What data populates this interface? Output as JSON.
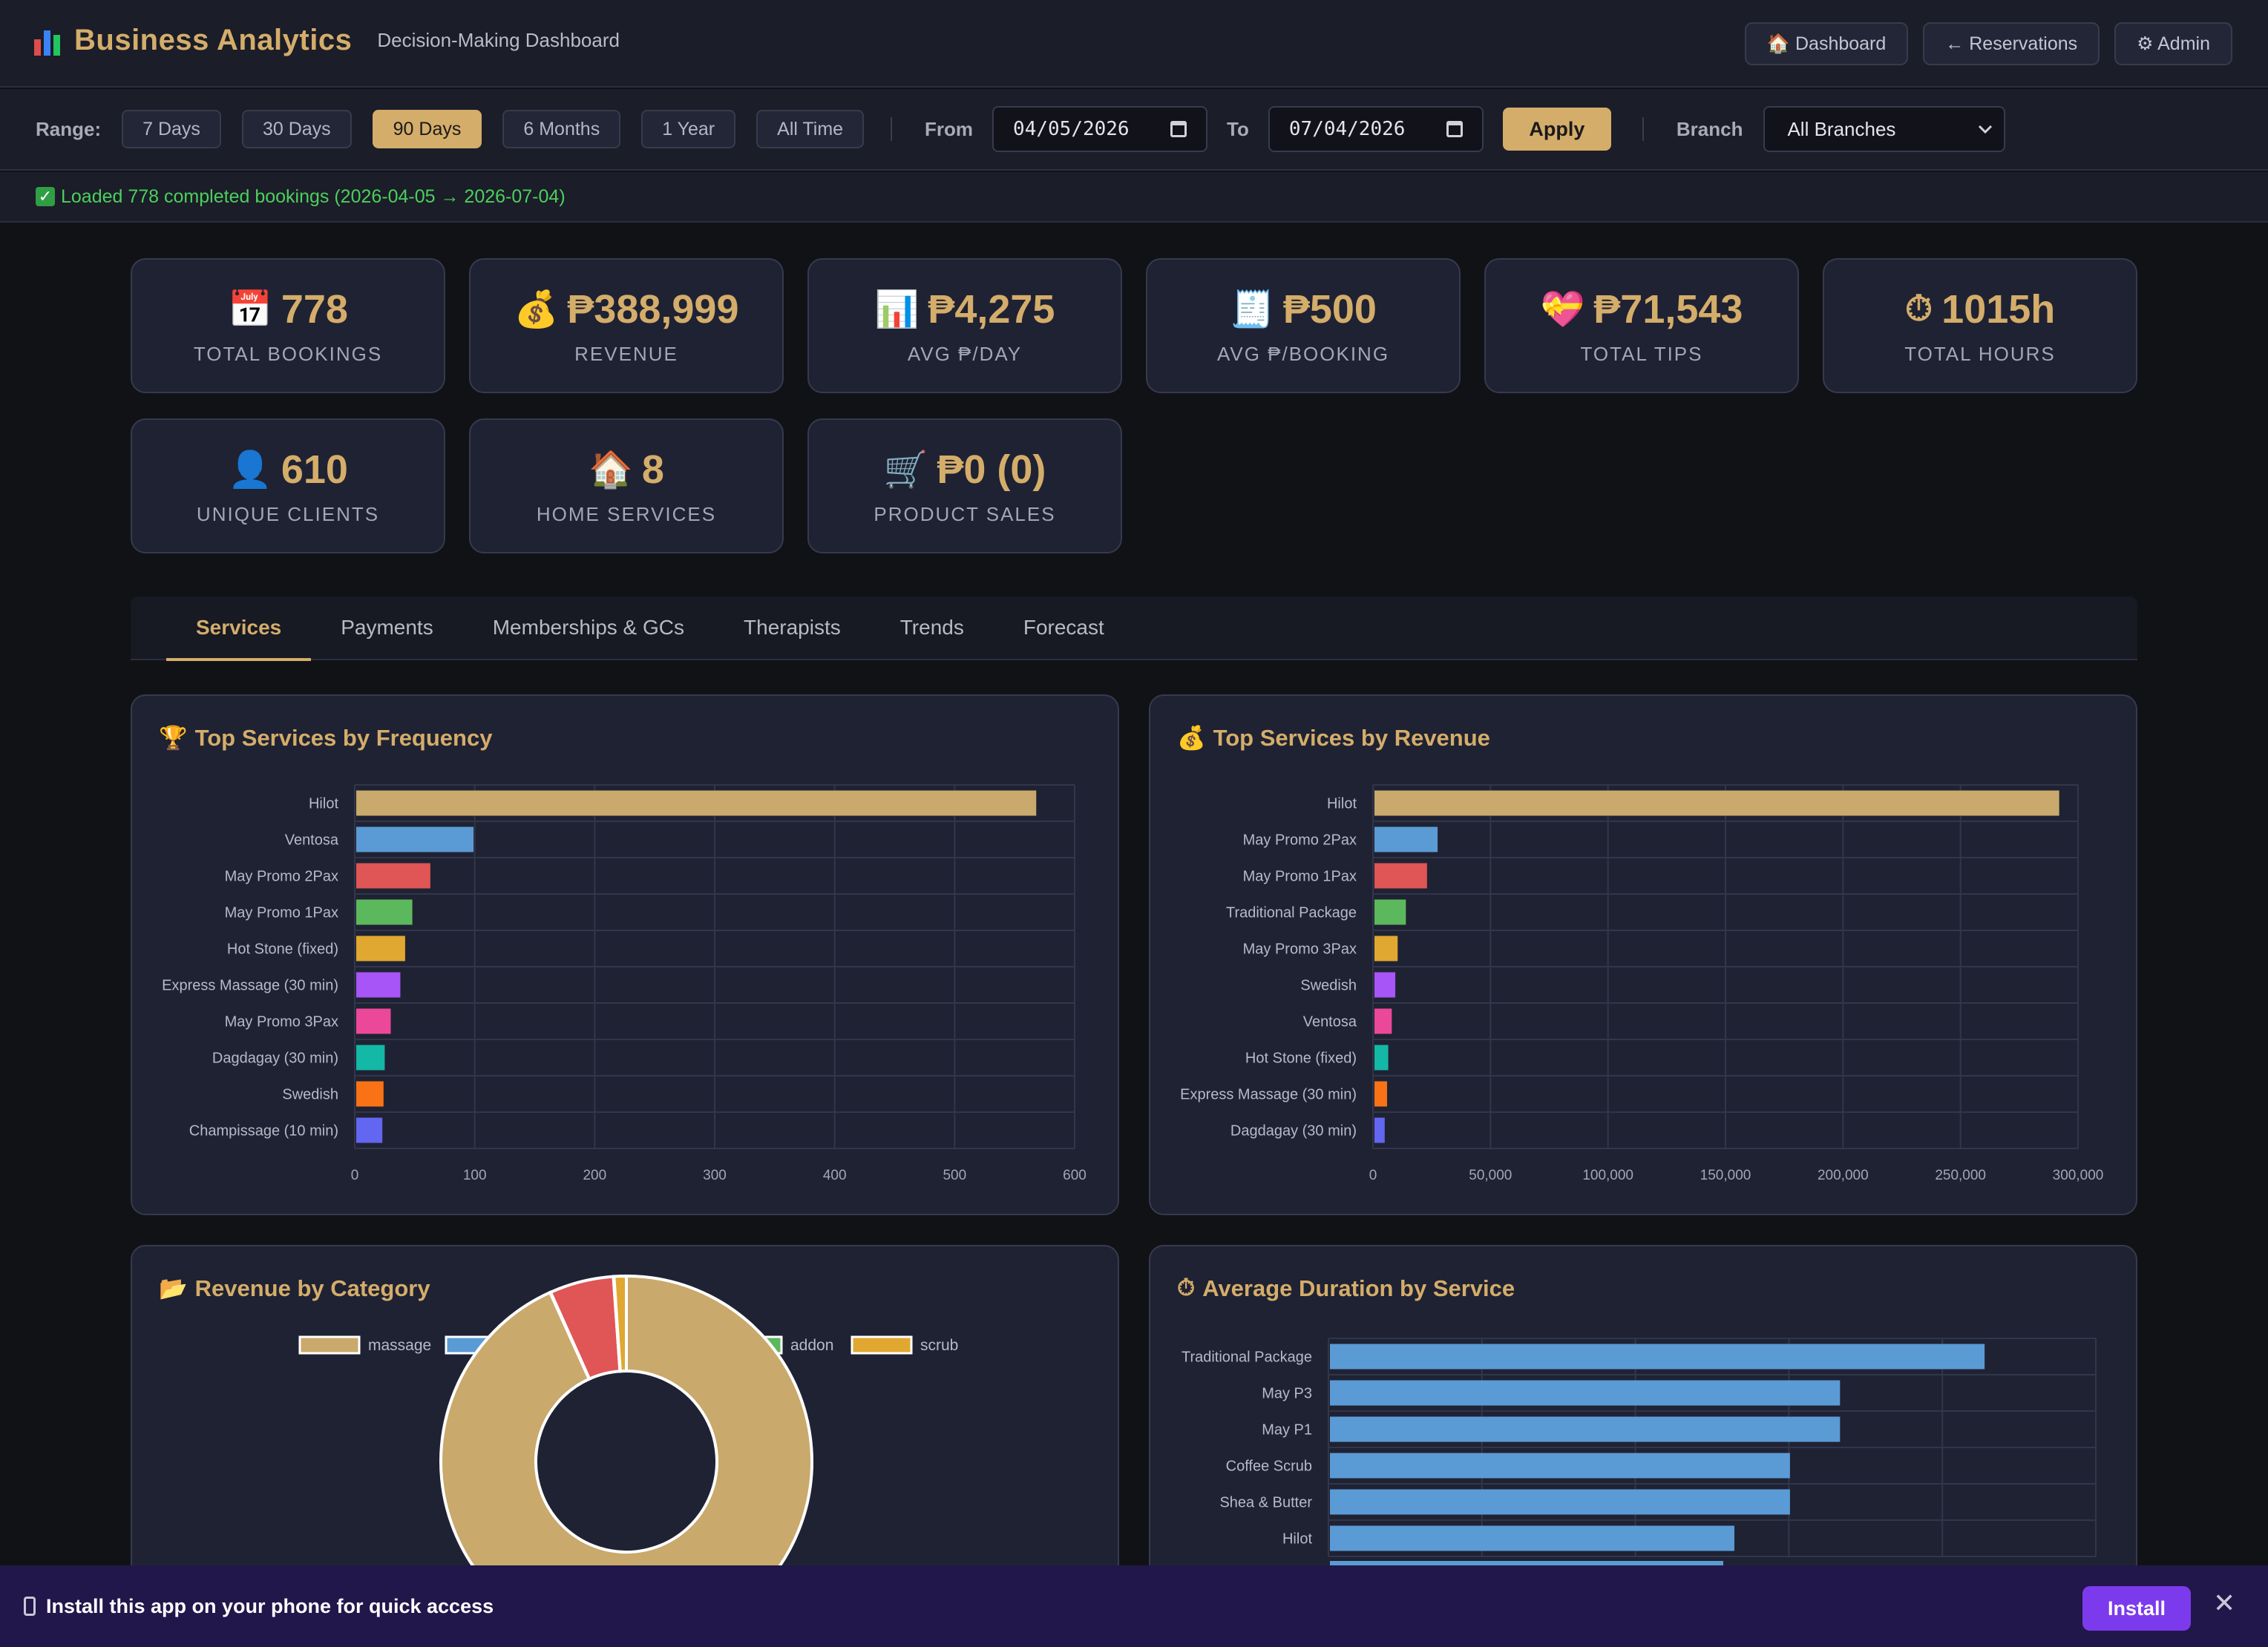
{
  "header": {
    "title": "Business Analytics",
    "subtitle": "Decision-Making Dashboard",
    "nav": [
      "🏠 Dashboard",
      "← Reservations",
      "⚙ Admin"
    ]
  },
  "filters": {
    "range_label": "Range:",
    "ranges": [
      "7 Days",
      "30 Days",
      "90 Days",
      "6 Months",
      "1 Year",
      "All Time"
    ],
    "active_range": "90 Days",
    "from_label": "From",
    "from_value": "04/05/2026",
    "to_label": "To",
    "to_value": "07/04/2026",
    "apply_label": "Apply",
    "branch_label": "Branch",
    "branch_value": "All Branches"
  },
  "status": {
    "message": "Loaded 778 completed bookings (2026-04-05 → 2026-07-04)",
    "color": "#4ccf5e"
  },
  "kpis": [
    {
      "icon": "📅",
      "value": "778",
      "label": "TOTAL BOOKINGS"
    },
    {
      "icon": "💰",
      "value": "₱388,999",
      "label": "REVENUE"
    },
    {
      "icon": "📊",
      "value": "₱4,275",
      "label": "AVG ₱/DAY"
    },
    {
      "icon": "🧾",
      "value": "₱500",
      "label": "AVG ₱/BOOKING"
    },
    {
      "icon": "💝",
      "value": "₱71,543",
      "label": "TOTAL TIPS"
    },
    {
      "icon": "⏱",
      "value": "1015h",
      "label": "TOTAL HOURS"
    },
    {
      "icon": "👤",
      "value": "610",
      "label": "UNIQUE CLIENTS"
    },
    {
      "icon": "🏠",
      "value": "8",
      "label": "HOME SERVICES"
    },
    {
      "icon": "🛒",
      "value": "₱0 (0)",
      "label": "PRODUCT SALES"
    }
  ],
  "tabs": [
    "Services",
    "Payments",
    "Memberships & GCs",
    "Therapists",
    "Trends",
    "Forecast"
  ],
  "active_tab": "Services",
  "cards": {
    "freq_title": "Top Services by Frequency",
    "freq_icon": "🏆",
    "rev_title": "Top Services by Revenue",
    "rev_icon": "💰",
    "cat_title": "Revenue by Category",
    "cat_icon": "📂",
    "dur_title": "Average Duration by Service",
    "dur_icon": "⏱"
  },
  "colors": {
    "gold": "#d4ad6a",
    "palette": [
      "#c9a96c",
      "#5b9bd5",
      "#e05555",
      "#5cb85c",
      "#e0a830",
      "#a855f7",
      "#ec4899",
      "#14b8a6",
      "#f97316",
      "#6366f1"
    ]
  },
  "install_bar": {
    "text": "Install this app on your phone for quick access",
    "button": "Install",
    "close": "✕"
  },
  "chart_data": [
    {
      "type": "bar",
      "orientation": "horizontal",
      "categories": [
        "Hilot",
        "Ventosa",
        "May Promo 2Pax",
        "May Promo 1Pax",
        "Hot Stone (fixed)",
        "Express Massage (30 min)",
        "May Promo 3Pax",
        "Dagdagay (30 min)",
        "Swedish",
        "Champissage (10 min)"
      ],
      "values": [
        568,
        99,
        63,
        48,
        42,
        38,
        30,
        25,
        24,
        23
      ],
      "xlim": [
        0,
        600
      ],
      "xticks": [
        "0",
        "100",
        "200",
        "300",
        "400",
        "500",
        "600"
      ],
      "grid": true
    },
    {
      "type": "bar",
      "orientation": "horizontal",
      "categories": [
        "Hilot",
        "May Promo 2Pax",
        "May Promo 1Pax",
        "Traditional Package",
        "May Promo 3Pax",
        "Swedish",
        "Ventosa",
        "Hot Stone (fixed)",
        "Express Massage (30 min)",
        "Dagdagay (30 min)"
      ],
      "values": [
        292000,
        27500,
        23000,
        14000,
        10500,
        9500,
        8000,
        6500,
        6000,
        5000
      ],
      "xlim": [
        0,
        300000
      ],
      "xticks": [
        "0",
        "50,000",
        "100,000",
        "150,000",
        "200,000",
        "250,000",
        "300,000"
      ],
      "grid": true
    },
    {
      "type": "pie",
      "donut": true,
      "legend": [
        "massage",
        "extra",
        "package",
        "addon",
        "scrub"
      ],
      "legend_position": "top",
      "values": [
        359500,
        200,
        21500,
        200,
        4100
      ],
      "colors": [
        "#c9a96c",
        "#5b9bd5",
        "#e05555",
        "#5cb85c",
        "#e0a830"
      ]
    },
    {
      "type": "bar",
      "orientation": "horizontal",
      "categories": [
        "Traditional Package",
        "May P3",
        "May P1",
        "Coffee Scrub",
        "Shea & Butter",
        "Hilot"
      ],
      "values": [
        118,
        92,
        92,
        83,
        83,
        73
      ],
      "xlim": [
        0,
        138
      ],
      "grid": true
    }
  ]
}
